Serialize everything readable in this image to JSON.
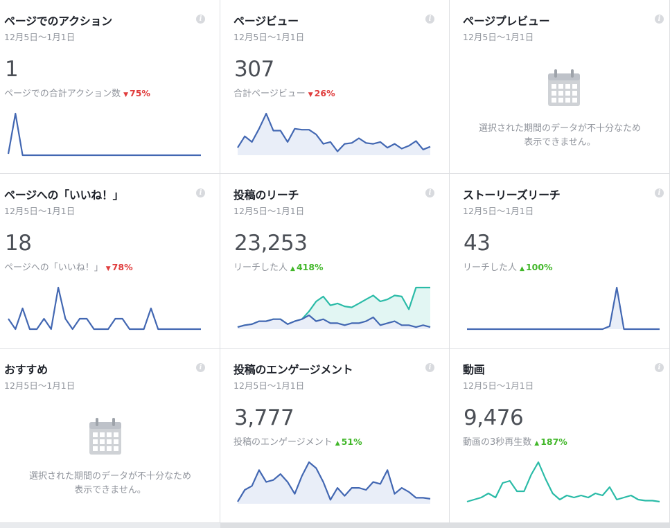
{
  "cards": [
    {
      "id": "page-actions",
      "title": "ページでのアクション",
      "date": "12月5日～1月1日",
      "value": "1",
      "subtitle": "ページでの合計アクション数",
      "change": "75%",
      "direction": "down",
      "chart": {
        "series": [
          {
            "color": "#4267b2",
            "fill": "none",
            "values": [
              2,
              60,
              0,
              0,
              0,
              0,
              0,
              0,
              0,
              0,
              0,
              0,
              0,
              0,
              0,
              0,
              0,
              0,
              0,
              0,
              0,
              0,
              0,
              0,
              0,
              0,
              0,
              0
            ]
          }
        ]
      }
    },
    {
      "id": "page-views",
      "title": "ページビュー",
      "date": "12月5日～1月1日",
      "value": "307",
      "subtitle": "合計ページビュー",
      "change": "26%",
      "direction": "down",
      "chart": {
        "series": [
          {
            "color": "#4267b2",
            "fill": "#e9eef8",
            "values": [
              8,
              20,
              14,
              28,
              44,
              26,
              26,
              14,
              28,
              27,
              27,
              22,
              12,
              14,
              4,
              12,
              13,
              18,
              13,
              12,
              14,
              8,
              12,
              7,
              10,
              15,
              6,
              9
            ]
          }
        ]
      }
    },
    {
      "id": "page-preview",
      "title": "ページプレビュー",
      "date": "12月5日～1月1日",
      "nodata": "選択された期間のデータが不十分なため\n表示できません。"
    },
    {
      "id": "page-likes",
      "title": "ページへの「いいね！」",
      "date": "12月5日～1月1日",
      "value": "18",
      "subtitle": "ページへの「いいね！」",
      "change": "78%",
      "direction": "down",
      "chart": {
        "series": [
          {
            "color": "#4267b2",
            "fill": "none",
            "values": [
              1,
              0,
              2,
              0,
              0,
              1,
              0,
              4,
              1,
              0,
              1,
              1,
              0,
              0,
              0,
              1,
              1,
              0,
              0,
              0,
              2,
              0,
              0,
              0,
              0,
              0,
              0,
              0
            ]
          }
        ]
      }
    },
    {
      "id": "post-reach",
      "title": "投稿のリーチ",
      "date": "12月5日～1月1日",
      "value": "23,253",
      "subtitle": "リーチした人",
      "change": "418%",
      "direction": "up",
      "chart": {
        "series": [
          {
            "color": "#2abba7",
            "fill": "#e2f6f3",
            "values": [
              2,
              4,
              5,
              8,
              8,
              10,
              10,
              5,
              8,
              10,
              18,
              28,
              33,
              24,
              26,
              23,
              22,
              26,
              30,
              34,
              28,
              30,
              34,
              33,
              20,
              42,
              42,
              42
            ]
          },
          {
            "color": "#4267b2",
            "fill": "#e9eef8",
            "values": [
              2,
              4,
              5,
              8,
              8,
              10,
              10,
              5,
              8,
              10,
              14,
              8,
              10,
              6,
              6,
              4,
              6,
              6,
              8,
              12,
              4,
              6,
              8,
              4,
              4,
              2,
              4,
              2
            ]
          }
        ]
      }
    },
    {
      "id": "stories-reach",
      "title": "ストーリーズリーチ",
      "date": "12月5日～1月1日",
      "value": "43",
      "subtitle": "リーチした人",
      "change": "100%",
      "direction": "up",
      "chart": {
        "series": [
          {
            "color": "#4267b2",
            "fill": "#e9eef8",
            "values": [
              0,
              0,
              0,
              0,
              0,
              0,
              0,
              0,
              0,
              0,
              0,
              0,
              0,
              0,
              0,
              0,
              0,
              0,
              0,
              0,
              3,
              43,
              0,
              0,
              0,
              0,
              0,
              0
            ]
          }
        ]
      }
    },
    {
      "id": "recommendations",
      "title": "おすすめ",
      "date": "12月5日～1月1日",
      "nodata": "選択された期間のデータが不十分なため\n表示できません。"
    },
    {
      "id": "post-engagement",
      "title": "投稿のエンゲージメント",
      "date": "12月5日～1月1日",
      "value": "3,777",
      "subtitle": "投稿のエンゲージメント",
      "change": "51%",
      "direction": "up",
      "chart": {
        "series": [
          {
            "color": "#4267b2",
            "fill": "#e9eef8",
            "values": [
              2,
              14,
              18,
              34,
              22,
              24,
              30,
              22,
              10,
              28,
              42,
              36,
              22,
              4,
              16,
              8,
              16,
              16,
              14,
              22,
              20,
              34,
              10,
              16,
              12,
              6,
              6,
              5
            ]
          }
        ]
      }
    },
    {
      "id": "videos",
      "title": "動画",
      "date": "12月5日～1月1日",
      "value": "9,476",
      "subtitle": "動画の3秒再生数",
      "change": "187%",
      "direction": "up",
      "chart": {
        "series": [
          {
            "color": "#2abba7",
            "fill": "none",
            "values": [
              2,
              4,
              6,
              10,
              6,
              20,
              22,
              12,
              12,
              28,
              40,
              24,
              10,
              4,
              8,
              6,
              8,
              6,
              10,
              8,
              16,
              4,
              6,
              8,
              4,
              3,
              3,
              2
            ]
          }
        ]
      }
    }
  ],
  "icons": {
    "info": "info-icon",
    "calendar": "calendar-icon",
    "down": "down-triangle-icon",
    "up": "up-triangle-icon"
  }
}
